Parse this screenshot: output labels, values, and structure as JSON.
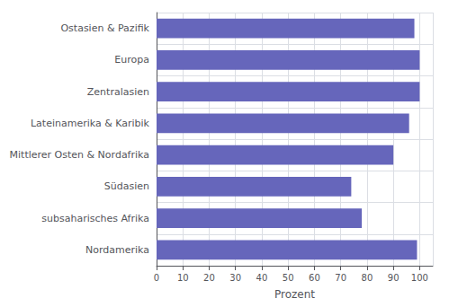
{
  "chart_data": {
    "type": "bar",
    "orientation": "horizontal",
    "categories": [
      "Ostasien & Pazifik",
      "Europa",
      "Zentralasien",
      "Lateinamerika & Karibik",
      "Mittlerer Osten & Nordafrika",
      "Südasien",
      "subsaharisches Afrika",
      "Nordamerika"
    ],
    "values": [
      98,
      100,
      100,
      96,
      90,
      74,
      78,
      99
    ],
    "color": "#6666bb",
    "xlabel": "Prozent",
    "xlim": [
      0,
      105
    ],
    "xticks": [
      0,
      10,
      20,
      30,
      40,
      50,
      60,
      70,
      80,
      90,
      100
    ],
    "grid": true
  }
}
